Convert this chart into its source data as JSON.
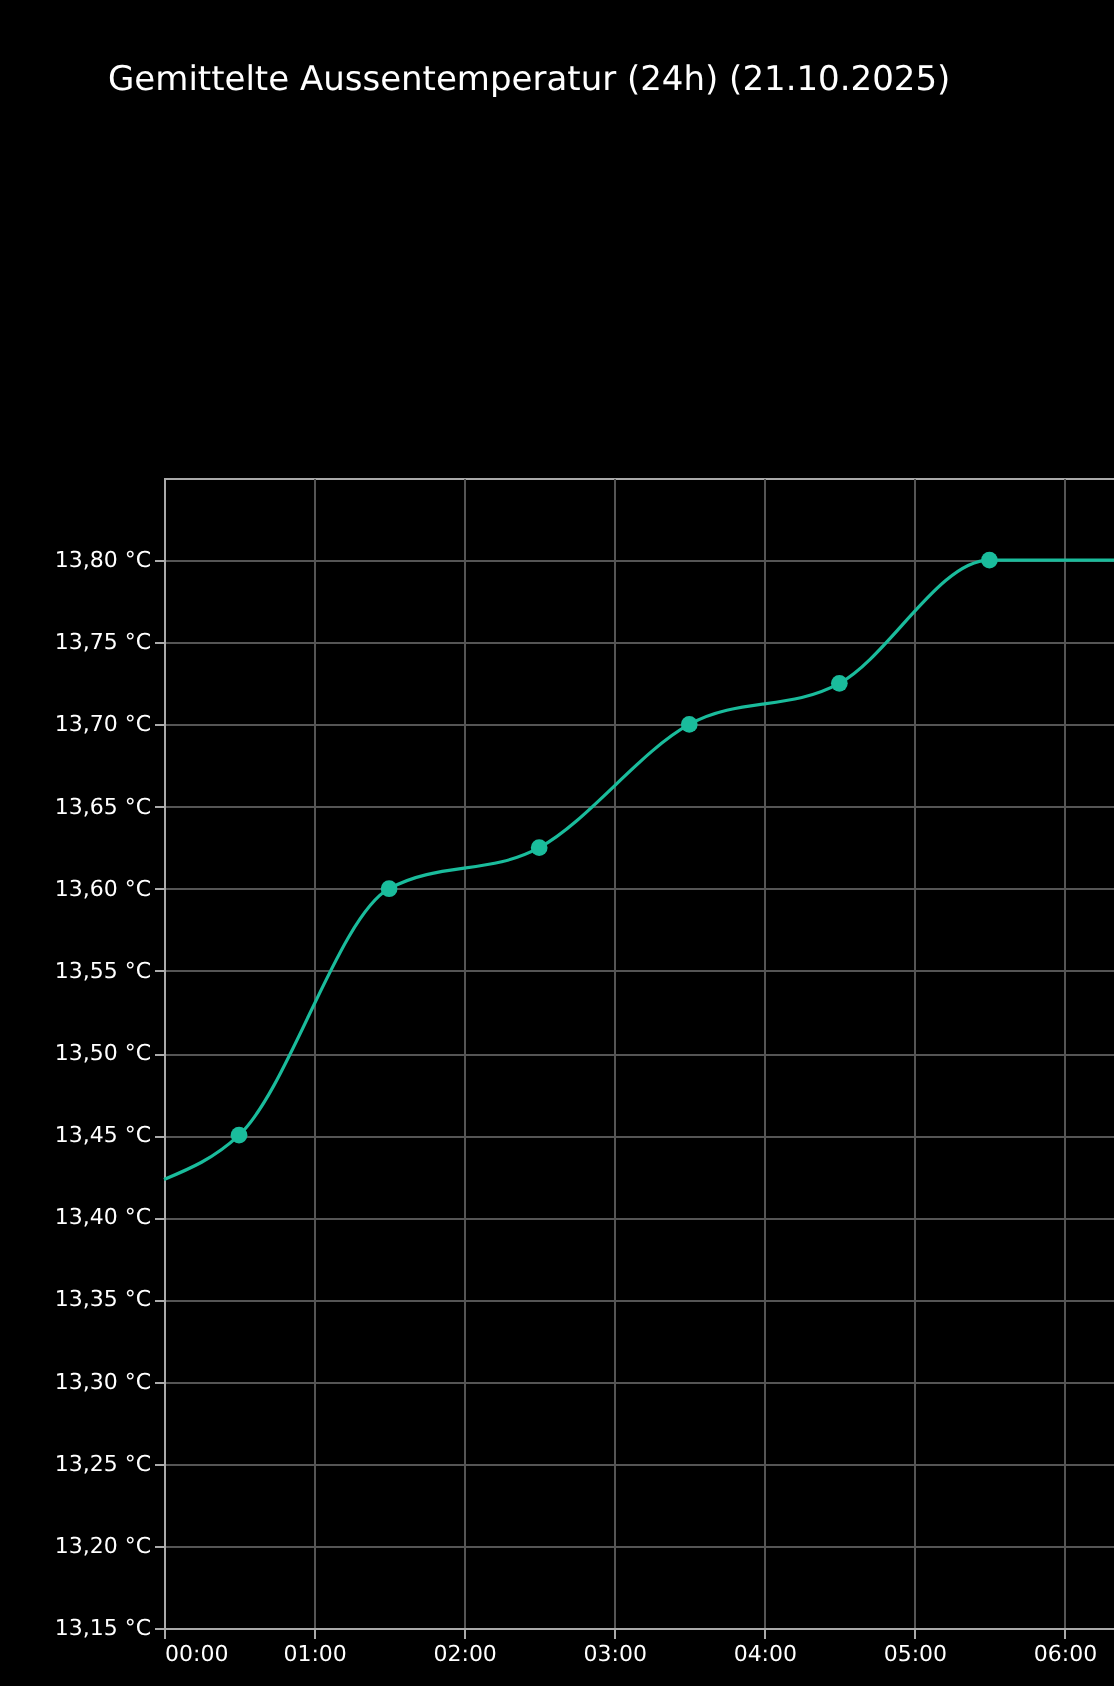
{
  "chart_data": {
    "type": "line",
    "title": "Gemittelte Aussentemperatur (24h) (21.10.2025)",
    "series": [
      {
        "color": "#1abc9c",
        "x": [
          0,
          0.5,
          1.5,
          2.5,
          3.5,
          4.5,
          5.5,
          6.33
        ],
        "values": [
          13.423,
          13.45,
          13.6,
          13.625,
          13.7,
          13.725,
          13.8,
          13.8
        ],
        "marker": "none"
      },
      {
        "type": "scatter",
        "color": "#1abc9c",
        "x": [
          0.5,
          1.5,
          2.5,
          3.5,
          4.5,
          5.5
        ],
        "values": [
          13.45,
          13.6,
          13.625,
          13.7,
          13.725,
          13.8
        ],
        "marker": "circle"
      }
    ],
    "xlim": [
      0,
      6.33
    ],
    "xticks": [
      {
        "value": 0,
        "label": "00:00"
      },
      {
        "value": 1,
        "label": "01:00"
      },
      {
        "value": 2,
        "label": "02:00"
      },
      {
        "value": 3,
        "label": "03:00"
      },
      {
        "value": 4,
        "label": "04:00"
      },
      {
        "value": 5,
        "label": "05:00"
      },
      {
        "value": 6,
        "label": "06:00"
      }
    ],
    "ylim": [
      13.15,
      13.85
    ],
    "yticks": [
      {
        "value": 13.15,
        "label": "13,15 °C"
      },
      {
        "value": 13.2,
        "label": "13,20 °C"
      },
      {
        "value": 13.25,
        "label": "13,25 °C"
      },
      {
        "value": 13.3,
        "label": "13,30 °C"
      },
      {
        "value": 13.35,
        "label": "13,35 °C"
      },
      {
        "value": 13.4,
        "label": "13,40 °C"
      },
      {
        "value": 13.45,
        "label": "13,45 °C"
      },
      {
        "value": 13.5,
        "label": "13,50 °C"
      },
      {
        "value": 13.55,
        "label": "13,55 °C"
      },
      {
        "value": 13.6,
        "label": "13,60 °C"
      },
      {
        "value": 13.65,
        "label": "13,65 °C"
      },
      {
        "value": 13.7,
        "label": "13,70 °C"
      },
      {
        "value": 13.75,
        "label": "13,75 °C"
      },
      {
        "value": 13.8,
        "label": "13,80 °C"
      }
    ],
    "grid": true
  }
}
